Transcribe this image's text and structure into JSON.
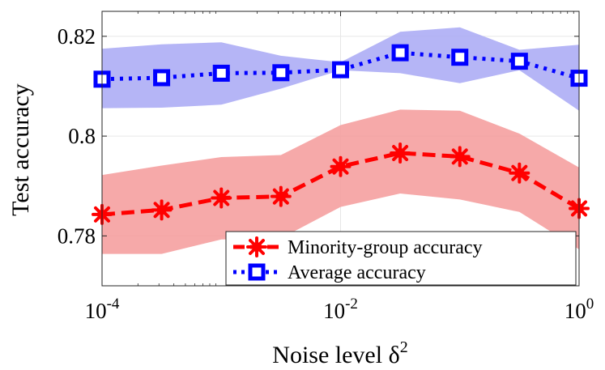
{
  "chart_data": {
    "type": "line",
    "xscale": "log",
    "x": [
      0.0001,
      0.000316,
      0.001,
      0.00316,
      0.01,
      0.0316,
      0.1,
      0.316,
      1
    ],
    "xlim": [
      0.0001,
      1
    ],
    "ylim": [
      0.77,
      0.825
    ],
    "xlabel": "Noise level δ",
    "xlabel_superscript": "2",
    "ylabel": "Test accuracy",
    "x_ticks": [
      {
        "value": 0.0001,
        "base": "10",
        "exp": "-4"
      },
      {
        "value": 0.01,
        "base": "10",
        "exp": "-2"
      },
      {
        "value": 1,
        "base": "10",
        "exp": "0"
      }
    ],
    "y_ticks": [
      {
        "value": 0.78,
        "label": "0.78"
      },
      {
        "value": 0.8,
        "label": "0.8"
      },
      {
        "value": 0.82,
        "label": "0.82"
      }
    ],
    "grid": true,
    "legend_position": "bottom-right",
    "series": [
      {
        "name": "Minority-group accuracy",
        "color": "#ff0000",
        "band_color": "#f49a9a",
        "marker": "star",
        "line_style": "dashed",
        "values": [
          0.7843,
          0.7852,
          0.7876,
          0.7879,
          0.7939,
          0.7966,
          0.7959,
          0.7926,
          0.7855
        ],
        "lower": [
          0.7764,
          0.7764,
          0.7793,
          0.7795,
          0.7858,
          0.7885,
          0.7873,
          0.7848,
          0.7773
        ],
        "upper": [
          0.7922,
          0.7941,
          0.7958,
          0.7962,
          0.8022,
          0.8053,
          0.8051,
          0.8005,
          0.7937
        ]
      },
      {
        "name": "Average accuracy",
        "color": "#0000ff",
        "band_color": "#a8a8f5",
        "marker": "square",
        "line_style": "dotted",
        "values": [
          0.8114,
          0.8117,
          0.8126,
          0.8127,
          0.8133,
          0.8167,
          0.8158,
          0.815,
          0.8116
        ],
        "lower": [
          0.8056,
          0.8057,
          0.8063,
          0.8095,
          0.8132,
          0.8126,
          0.8106,
          0.8132,
          0.8051
        ],
        "upper": [
          0.8175,
          0.8184,
          0.8188,
          0.8161,
          0.8148,
          0.8209,
          0.8218,
          0.8173,
          0.8183
        ]
      }
    ]
  }
}
